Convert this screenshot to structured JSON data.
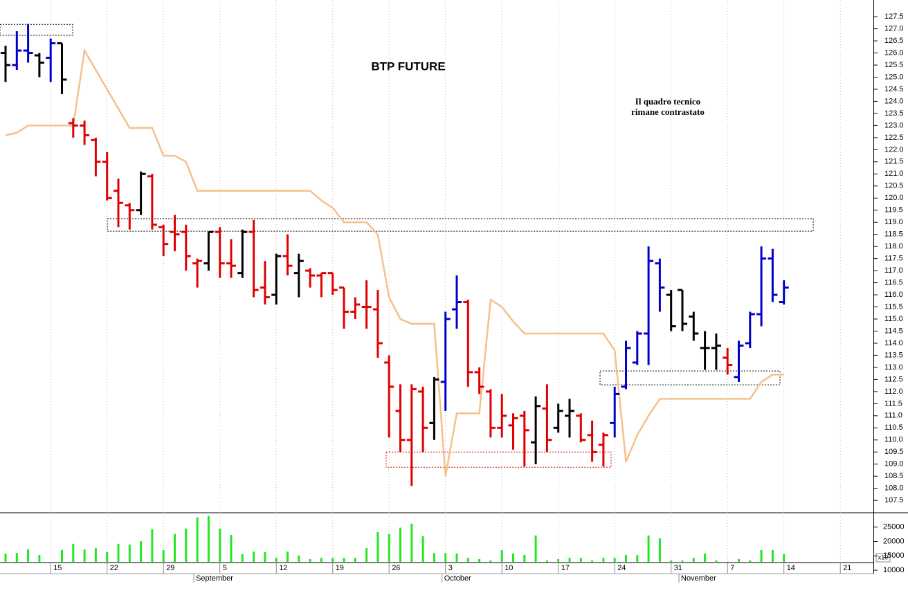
{
  "chart_data": {
    "type": "ohlc",
    "title": "BTP FUTURE",
    "annotation": [
      "Il quadro tecnico",
      "rimane contrastato"
    ],
    "categories": [
      null,
      null,
      null,
      null,
      "15",
      null,
      null,
      null,
      null,
      "22",
      null,
      null,
      null,
      null,
      "29",
      null,
      null,
      null,
      null,
      "5",
      null,
      null,
      null,
      null,
      "12",
      null,
      null,
      null,
      null,
      "19",
      null,
      null,
      null,
      null,
      "26",
      null,
      null,
      null,
      null,
      "3",
      null,
      null,
      null,
      null,
      "10",
      null,
      null,
      null,
      null,
      "17",
      null,
      null,
      null,
      null,
      "24",
      null,
      null,
      null,
      null,
      "31",
      null,
      null,
      null,
      null,
      "7",
      null,
      null,
      null,
      null,
      "14",
      null,
      null,
      null,
      null,
      "21",
      null,
      null
    ],
    "months": [
      {
        "label": "September",
        "start": 17
      },
      {
        "label": "October",
        "start": 39
      },
      {
        "label": "November",
        "start": 60
      }
    ],
    "open": [
      126.0,
      125.5,
      126.1,
      125.9,
      125.8,
      126.4,
      123.1,
      123.0,
      122.4,
      121.5,
      120.3,
      119.7,
      119.5,
      120.9,
      118.8,
      118.6,
      118.6,
      117.3,
      117.3,
      118.6,
      117.3,
      116.9,
      118.6,
      116.3,
      116.0,
      117.6,
      116.9,
      117.0,
      116.8,
      116.9,
      116.3,
      115.3,
      115.5,
      115.4,
      113.2,
      111.2,
      110.0,
      112.0,
      110.7,
      112.4,
      115.4,
      115.7,
      112.8,
      112.0,
      110.5,
      110.6,
      111.0,
      109.9,
      111.3,
      110.5,
      111.0,
      111.0,
      110.2,
      109.8,
      110.7,
      112.2,
      113.2,
      114.4,
      117.3,
      116.0,
      116.2,
      115.1,
      113.8,
      113.8,
      113.4,
      112.6,
      114.0,
      115.2,
      117.5,
      115.7,
      null,
      null,
      null,
      null,
      null,
      null,
      null
    ],
    "high": [
      126.3,
      126.9,
      127.2,
      126.0,
      126.6,
      126.4,
      123.3,
      123.2,
      122.5,
      121.9,
      120.8,
      119.8,
      121.1,
      121.0,
      118.9,
      119.3,
      118.9,
      117.5,
      118.6,
      118.8,
      118.3,
      118.7,
      119.1,
      117.4,
      117.7,
      118.5,
      117.7,
      117.1,
      116.9,
      116.9,
      116.3,
      115.9,
      116.6,
      116.2,
      113.5,
      112.3,
      112.3,
      112.2,
      112.6,
      115.3,
      116.8,
      115.8,
      113.0,
      112.1,
      111.9,
      111.1,
      111.2,
      111.8,
      112.3,
      111.5,
      111.7,
      111.1,
      110.8,
      110.3,
      112.2,
      114.1,
      114.5,
      118.0,
      117.5,
      116.2,
      116.2,
      115.3,
      114.5,
      114.4,
      113.8,
      114.1,
      115.3,
      118.0,
      117.9,
      116.6,
      null,
      null,
      null,
      null,
      null,
      null,
      null
    ],
    "low": [
      124.8,
      125.3,
      125.6,
      125.0,
      124.8,
      124.3,
      122.5,
      122.2,
      120.9,
      119.9,
      118.8,
      118.7,
      119.3,
      118.7,
      117.6,
      117.8,
      117.0,
      116.3,
      117.0,
      116.7,
      116.7,
      116.7,
      115.9,
      115.6,
      115.6,
      116.8,
      115.9,
      116.3,
      115.9,
      116.0,
      114.6,
      115.0,
      114.6,
      113.4,
      110.1,
      109.5,
      108.1,
      109.5,
      110.0,
      111.2,
      114.6,
      112.2,
      111.9,
      110.1,
      110.1,
      109.6,
      108.9,
      109.0,
      109.5,
      110.3,
      110.1,
      109.9,
      109.1,
      108.9,
      110.1,
      112.1,
      113.1,
      113.1,
      115.3,
      114.5,
      114.5,
      114.1,
      112.9,
      112.9,
      112.7,
      112.4,
      113.8,
      114.7,
      115.7,
      115.6,
      null,
      null,
      null,
      null,
      null,
      null,
      null
    ],
    "close": [
      125.5,
      126.1,
      126.0,
      125.6,
      126.4,
      124.9,
      123.0,
      122.6,
      121.5,
      120.0,
      119.8,
      119.5,
      121.0,
      118.9,
      118.1,
      118.5,
      117.6,
      117.4,
      118.6,
      117.3,
      117.2,
      118.6,
      116.2,
      115.9,
      117.6,
      117.2,
      117.4,
      116.8,
      116.9,
      116.2,
      115.3,
      115.6,
      115.5,
      114.0,
      112.2,
      110.0,
      112.1,
      110.5,
      112.5,
      115.0,
      115.7,
      112.8,
      112.2,
      110.5,
      111.0,
      110.9,
      110.4,
      111.4,
      110.0,
      111.2,
      111.2,
      110.0,
      109.5,
      110.2,
      111.9,
      113.8,
      114.4,
      117.4,
      116.3,
      114.7,
      114.8,
      114.4,
      113.8,
      113.9,
      113.1,
      113.9,
      115.2,
      117.5,
      116.0,
      116.3,
      null,
      null,
      null,
      null,
      null,
      null,
      null
    ],
    "colors": [
      "#000000",
      "#0000c8",
      "#0000c8",
      "#000000",
      "#0000c8",
      "#000000",
      "#e00000",
      "#e00000",
      "#e00000",
      "#e00000",
      "#e00000",
      "#e00000",
      "#000000",
      "#e00000",
      "#e00000",
      "#e00000",
      "#e00000",
      "#e00000",
      "#000000",
      "#e00000",
      "#e00000",
      "#000000",
      "#e00000",
      "#e00000",
      "#000000",
      "#e00000",
      "#000000",
      "#e00000",
      "#e00000",
      "#e00000",
      "#e00000",
      "#e00000",
      "#e00000",
      "#e00000",
      "#e00000",
      "#e00000",
      "#e00000",
      "#e00000",
      "#000000",
      "#0000c8",
      "#0000c8",
      "#e00000",
      "#e00000",
      "#e00000",
      "#e00000",
      "#e00000",
      "#e00000",
      "#000000",
      "#e00000",
      "#000000",
      "#000000",
      "#e00000",
      "#e00000",
      "#e00000",
      "#0000c8",
      "#0000c8",
      "#0000c8",
      "#0000c8",
      "#0000c8",
      "#000000",
      "#000000",
      "#000000",
      "#000000",
      "#000000",
      "#e00000",
      "#0000c8",
      "#0000c8",
      "#0000c8",
      "#0000c8",
      "#0000c8",
      null,
      null,
      null,
      null,
      null,
      null,
      null
    ],
    "line": {
      "color": "#f5c08a",
      "values": [
        122.6,
        122.7,
        123.0,
        123.0,
        123.0,
        123.0,
        123.0,
        126.1,
        125.3,
        124.5,
        123.7,
        122.9,
        122.9,
        122.9,
        121.75,
        121.75,
        121.5,
        120.3,
        120.3,
        120.3,
        120.3,
        120.3,
        120.3,
        120.3,
        120.3,
        120.3,
        120.3,
        120.3,
        119.9,
        119.6,
        119.0,
        119.0,
        119.0,
        118.5,
        115.9,
        115.0,
        114.8,
        114.8,
        114.8,
        108.5,
        111.1,
        111.1,
        111.1,
        115.8,
        115.5,
        114.9,
        114.4,
        114.4,
        114.4,
        114.4,
        114.4,
        114.4,
        114.4,
        114.4,
        113.7,
        109.1,
        110.2,
        111.0,
        111.7,
        111.7,
        111.7,
        111.7,
        111.7,
        111.7,
        111.7,
        111.7,
        111.7,
        112.4,
        112.7,
        112.7,
        null,
        null,
        null,
        null,
        null,
        null,
        null
      ]
    },
    "zones": [
      {
        "x": [
          -0.49,
          5.95
        ],
        "y": [
          126.73,
          127.18
        ],
        "color": "#000000"
      },
      {
        "x": [
          9.02,
          71.6
        ],
        "y": [
          118.63,
          119.15
        ],
        "color": "#000000"
      },
      {
        "x": [
          33.74,
          53.68
        ],
        "y": [
          108.87,
          109.5
        ],
        "color": "#e00000"
      },
      {
        "x": [
          52.7,
          68.65
        ],
        "y": [
          112.28,
          112.85
        ],
        "color": "#000000"
      }
    ],
    "ylim": [
      106.99,
      128.19
    ],
    "yticks": [
      107.5,
      {
        "value": 108,
        "label": "108.0"
      },
      108.5,
      {
        "value": 109,
        "label": "109.0"
      },
      109.5,
      {
        "value": 110,
        "label": "110.0"
      },
      110.5,
      {
        "value": 111,
        "label": "111.0"
      },
      111.5,
      {
        "value": 112,
        "label": "112.0"
      },
      112.5,
      {
        "value": 113,
        "label": "113.0"
      },
      113.5,
      {
        "value": 114,
        "label": "114.0"
      },
      114.5,
      {
        "value": 115,
        "label": "115.0"
      },
      115.5,
      {
        "value": 116,
        "label": "116.0"
      },
      116.5,
      {
        "value": 117,
        "label": "117.0"
      },
      117.5,
      {
        "value": 118,
        "label": "118.0"
      },
      118.5,
      {
        "value": 119,
        "label": "119.0"
      },
      119.5,
      {
        "value": 120,
        "label": "120.0"
      },
      120.5,
      {
        "value": 121,
        "label": "121.0"
      },
      121.5,
      {
        "value": 122,
        "label": "122.0"
      },
      122.5,
      {
        "value": 123,
        "label": "123.0"
      },
      123.5,
      {
        "value": 124,
        "label": "124.0"
      },
      124.5,
      {
        "value": 125,
        "label": "125.0"
      },
      125.5,
      {
        "value": 126,
        "label": "126.0"
      },
      126.5,
      {
        "value": 127,
        "label": "127.0"
      },
      127.5
    ],
    "volume": {
      "color": "#22e822",
      "unit": "x10",
      "ylim": [
        12900,
        30000
      ],
      "yticks": [
        10000,
        15000,
        20000,
        25000
      ],
      "values": [
        15800,
        16000,
        17200,
        15300,
        null,
        17000,
        19200,
        17200,
        17700,
        16300,
        19200,
        18900,
        20100,
        24300,
        17000,
        22600,
        24500,
        28400,
        28900,
        24500,
        22300,
        15600,
        16500,
        16300,
        14300,
        16500,
        15100,
        13900,
        14300,
        14300,
        14300,
        14300,
        17700,
        23300,
        22600,
        24800,
        26200,
        21800,
        16000,
        16000,
        15800,
        14300,
        13900,
        13400,
        17000,
        15800,
        15300,
        22100,
        13400,
        13900,
        14300,
        14300,
        13400,
        14300,
        14300,
        15300,
        15300,
        22100,
        21100,
        13400,
        13400,
        14300,
        15800,
        13400,
        13000,
        13900,
        13400,
        17000,
        17000,
        15600,
        null,
        null,
        null,
        null,
        null,
        null,
        null
      ]
    }
  }
}
